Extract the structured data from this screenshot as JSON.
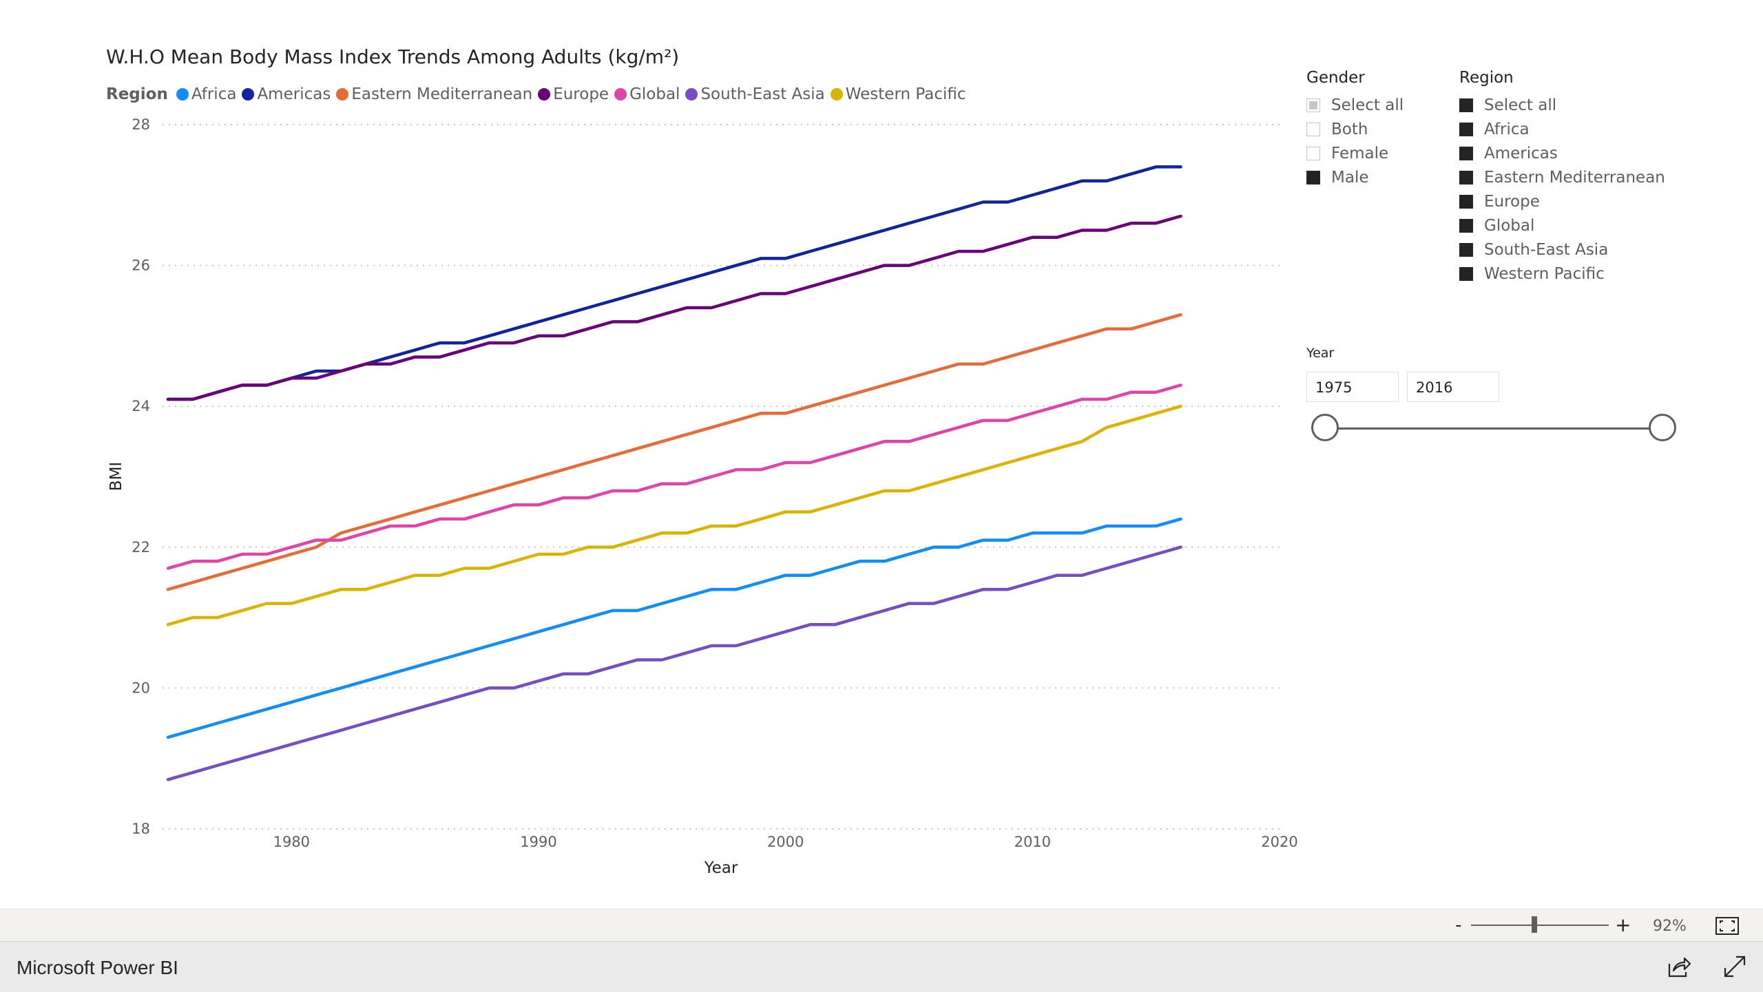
{
  "chart": {
    "title": "W.H.O Mean Body Mass Index Trends Among Adults (kg/m²)",
    "legend_title": "Region"
  },
  "chart_data": {
    "type": "line",
    "title": "W.H.O Mean Body Mass Index Trends Among Adults (kg/m²)",
    "xlabel": "Year",
    "ylabel": "BMI",
    "xlim": [
      1975,
      2020
    ],
    "ylim": [
      18,
      28
    ],
    "x_ticks": [
      1980,
      1990,
      2000,
      2010,
      2020
    ],
    "y_ticks": [
      18,
      20,
      22,
      24,
      26,
      28
    ],
    "grid": "horizontal dotted",
    "legend_position": "top-left",
    "x": [
      1975,
      1976,
      1977,
      1978,
      1979,
      1980,
      1981,
      1982,
      1983,
      1984,
      1985,
      1986,
      1987,
      1988,
      1989,
      1990,
      1991,
      1992,
      1993,
      1994,
      1995,
      1996,
      1997,
      1998,
      1999,
      2000,
      2001,
      2002,
      2003,
      2004,
      2005,
      2006,
      2007,
      2008,
      2009,
      2010,
      2011,
      2012,
      2013,
      2014,
      2015,
      2016
    ],
    "series": [
      {
        "name": "Africa",
        "color": "#118DFF",
        "values": [
          19.3,
          19.4,
          19.5,
          19.6,
          19.7,
          19.8,
          19.9,
          20.0,
          20.1,
          20.2,
          20.3,
          20.4,
          20.5,
          20.6,
          20.7,
          20.8,
          20.9,
          21.0,
          21.1,
          21.1,
          21.2,
          21.3,
          21.4,
          21.4,
          21.5,
          21.6,
          21.6,
          21.7,
          21.8,
          21.8,
          21.9,
          22.0,
          22.0,
          22.1,
          22.1,
          22.2,
          22.2,
          22.2,
          22.3,
          22.3,
          22.3,
          22.4
        ]
      },
      {
        "name": "Americas",
        "color": "#12239E",
        "values": [
          24.1,
          24.1,
          24.2,
          24.3,
          24.3,
          24.4,
          24.5,
          24.5,
          24.6,
          24.7,
          24.8,
          24.9,
          24.9,
          25.0,
          25.1,
          25.2,
          25.3,
          25.4,
          25.5,
          25.6,
          25.7,
          25.8,
          25.9,
          26.0,
          26.1,
          26.1,
          26.2,
          26.3,
          26.4,
          26.5,
          26.6,
          26.7,
          26.8,
          26.9,
          26.9,
          27.0,
          27.1,
          27.2,
          27.2,
          27.3,
          27.4,
          27.4
        ]
      },
      {
        "name": "Eastern Mediterranean",
        "color": "#E66C37",
        "values": [
          21.4,
          21.5,
          21.6,
          21.7,
          21.8,
          21.9,
          22.0,
          22.2,
          22.3,
          22.4,
          22.5,
          22.6,
          22.7,
          22.8,
          22.9,
          23.0,
          23.1,
          23.2,
          23.3,
          23.4,
          23.5,
          23.6,
          23.7,
          23.8,
          23.9,
          23.9,
          24.0,
          24.1,
          24.2,
          24.3,
          24.4,
          24.5,
          24.6,
          24.6,
          24.7,
          24.8,
          24.9,
          25.0,
          25.1,
          25.1,
          25.2,
          25.3
        ]
      },
      {
        "name": "Europe",
        "color": "#6B007B",
        "values": [
          24.1,
          24.1,
          24.2,
          24.3,
          24.3,
          24.4,
          24.4,
          24.5,
          24.6,
          24.6,
          24.7,
          24.7,
          24.8,
          24.9,
          24.9,
          25.0,
          25.0,
          25.1,
          25.2,
          25.2,
          25.3,
          25.4,
          25.4,
          25.5,
          25.6,
          25.6,
          25.7,
          25.8,
          25.9,
          26.0,
          26.0,
          26.1,
          26.2,
          26.2,
          26.3,
          26.4,
          26.4,
          26.5,
          26.5,
          26.6,
          26.6,
          26.7
        ]
      },
      {
        "name": "Global",
        "color": "#E044A7",
        "values": [
          21.7,
          21.8,
          21.8,
          21.9,
          21.9,
          22.0,
          22.1,
          22.1,
          22.2,
          22.3,
          22.3,
          22.4,
          22.4,
          22.5,
          22.6,
          22.6,
          22.7,
          22.7,
          22.8,
          22.8,
          22.9,
          22.9,
          23.0,
          23.1,
          23.1,
          23.2,
          23.2,
          23.3,
          23.4,
          23.5,
          23.5,
          23.6,
          23.7,
          23.8,
          23.8,
          23.9,
          24.0,
          24.1,
          24.1,
          24.2,
          24.2,
          24.3
        ]
      },
      {
        "name": "South-East Asia",
        "color": "#744EC2",
        "values": [
          18.7,
          18.8,
          18.9,
          19.0,
          19.1,
          19.2,
          19.3,
          19.4,
          19.5,
          19.6,
          19.7,
          19.8,
          19.9,
          20.0,
          20.0,
          20.1,
          20.2,
          20.2,
          20.3,
          20.4,
          20.4,
          20.5,
          20.6,
          20.6,
          20.7,
          20.8,
          20.9,
          20.9,
          21.0,
          21.1,
          21.2,
          21.2,
          21.3,
          21.4,
          21.4,
          21.5,
          21.6,
          21.6,
          21.7,
          21.8,
          21.9,
          22.0
        ]
      },
      {
        "name": "Western Pacific",
        "color": "#D9B300",
        "values": [
          20.9,
          21.0,
          21.0,
          21.1,
          21.2,
          21.2,
          21.3,
          21.4,
          21.4,
          21.5,
          21.6,
          21.6,
          21.7,
          21.7,
          21.8,
          21.9,
          21.9,
          22.0,
          22.0,
          22.1,
          22.2,
          22.2,
          22.3,
          22.3,
          22.4,
          22.5,
          22.5,
          22.6,
          22.7,
          22.8,
          22.8,
          22.9,
          23.0,
          23.1,
          23.2,
          23.3,
          23.4,
          23.5,
          23.7,
          23.8,
          23.9,
          24.0
        ]
      }
    ]
  },
  "gender_slicer": {
    "title": "Gender",
    "items": [
      {
        "label": "Select all",
        "state": "partial"
      },
      {
        "label": "Both",
        "state": "unchecked"
      },
      {
        "label": "Female",
        "state": "unchecked"
      },
      {
        "label": "Male",
        "state": "checked"
      }
    ]
  },
  "region_slicer": {
    "title": "Region",
    "items": [
      {
        "label": "Select all",
        "state": "checked"
      },
      {
        "label": "Africa",
        "state": "checked"
      },
      {
        "label": "Americas",
        "state": "checked"
      },
      {
        "label": "Eastern Mediterranean",
        "state": "checked"
      },
      {
        "label": "Europe",
        "state": "checked"
      },
      {
        "label": "Global",
        "state": "checked"
      },
      {
        "label": "South-East Asia",
        "state": "checked"
      },
      {
        "label": "Western Pacific",
        "state": "checked"
      }
    ]
  },
  "year_slicer": {
    "title": "Year",
    "start": "1975",
    "end": "2016",
    "range_min": 1975,
    "range_max": 2016
  },
  "zoom": {
    "minus": "-",
    "plus": "+",
    "percent": "92%",
    "level": 0.92
  },
  "footer": {
    "brand": "Microsoft Power BI"
  },
  "icons": [
    "fit-to-page-icon",
    "share-icon",
    "expand-icon"
  ]
}
